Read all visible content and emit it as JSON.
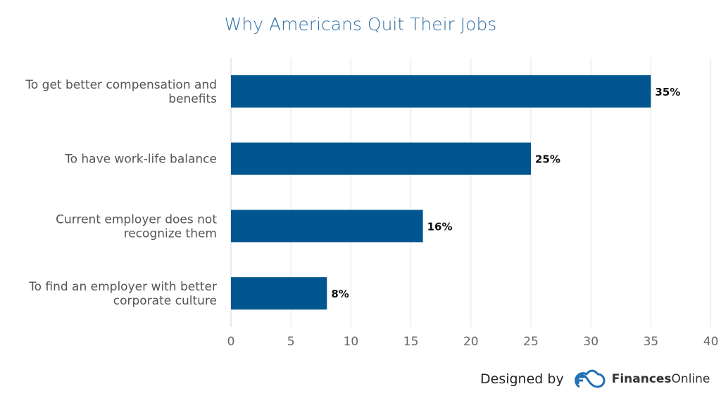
{
  "chart_data": {
    "type": "bar",
    "orientation": "horizontal",
    "title": "Why Americans Quit Their Jobs",
    "categories": [
      [
        "To get better compensation and",
        "benefits"
      ],
      [
        "To have work-life balance"
      ],
      [
        "Current employer does not",
        "recognize them"
      ],
      [
        "To find an employer with better",
        "corporate culture"
      ]
    ],
    "values": [
      35,
      25,
      16,
      8
    ],
    "data_labels": [
      "35%",
      "25%",
      "16%",
      "8%"
    ],
    "xlim": [
      0,
      40
    ],
    "xticks": [
      "0",
      "5",
      "10",
      "15",
      "20",
      "25",
      "30",
      "35",
      "40"
    ],
    "grid": true,
    "bar_color": "#01568f"
  },
  "footer": {
    "designed_by": "Designed by",
    "brand_bold": "Finances",
    "brand_rest": "Online",
    "logo_color": "#1f6fb2"
  }
}
